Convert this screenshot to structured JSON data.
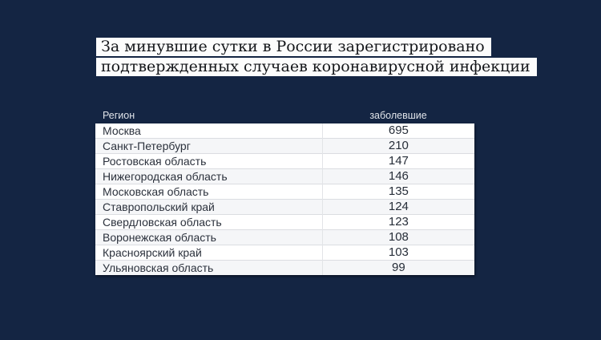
{
  "colors": {
    "background": "#142543",
    "title_block_bg": "#fcfcfc",
    "title_text": "#14161a",
    "column_header_text": "#dfe3e9",
    "table_bg": "#ffffff",
    "table_alt_row_bg": "#f5f6f8",
    "table_text": "#2b313c",
    "row_divider": "#dbdde1"
  },
  "title": {
    "line1": "За минувшие сутки в России зарегистрировано",
    "line2": "подтвержденных случаев коронавирусной инфекции"
  },
  "table": {
    "region_header": "Регион",
    "cases_header": "заболевшие",
    "rows": [
      {
        "region": "Москва",
        "cases": "695"
      },
      {
        "region": "Санкт-Петербург",
        "cases": "210"
      },
      {
        "region": "Ростовская область",
        "cases": "147"
      },
      {
        "region": "Нижегородская область",
        "cases": "146"
      },
      {
        "region": "Московская область",
        "cases": "135"
      },
      {
        "region": "Ставропольский край",
        "cases": "124"
      },
      {
        "region": "Свердловская область",
        "cases": "123"
      },
      {
        "region": "Воронежская область",
        "cases": "108"
      },
      {
        "region": "Красноярский край",
        "cases": "103"
      },
      {
        "region": "Ульяновская область",
        "cases": "99"
      }
    ]
  },
  "chart_data": {
    "type": "table",
    "title": "За минувшие сутки в России зарегистрировано подтвержденных случаев коронавирусной инфекции",
    "columns": [
      "Регион",
      "заболевшие"
    ],
    "categories": [
      "Москва",
      "Санкт-Петербург",
      "Ростовская область",
      "Нижегородская область",
      "Московская область",
      "Ставропольский край",
      "Свердловская область",
      "Воронежская область",
      "Красноярский край",
      "Ульяновская область"
    ],
    "values": [
      695,
      210,
      147,
      146,
      135,
      124,
      123,
      108,
      103,
      99
    ]
  }
}
